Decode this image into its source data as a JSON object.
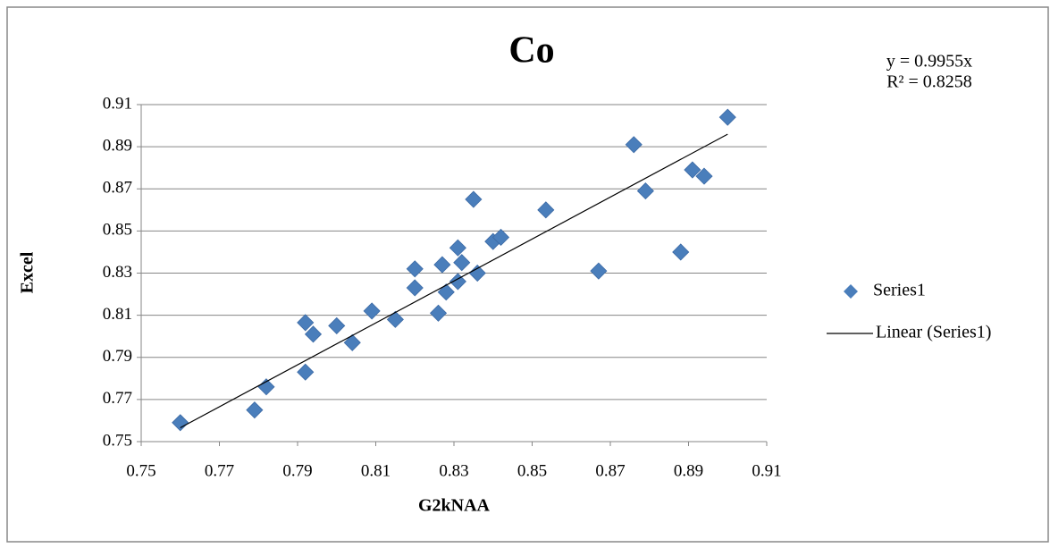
{
  "chart_data": {
    "type": "scatter",
    "title": "Co",
    "x_label": "G2kNAA",
    "y_label": "Excel",
    "xlim": [
      0.75,
      0.91
    ],
    "ylim": [
      0.75,
      0.91
    ],
    "xticks": [
      0.75,
      0.77,
      0.79,
      0.81,
      0.83,
      0.85,
      0.87,
      0.89,
      0.91
    ],
    "yticks": [
      0.75,
      0.77,
      0.79,
      0.81,
      0.83,
      0.85,
      0.87,
      0.89,
      0.91
    ],
    "grid": true,
    "legend": "right",
    "series": [
      {
        "name": "Series1",
        "color": "#4a7ebb",
        "x": [
          0.76,
          0.779,
          0.782,
          0.792,
          0.792,
          0.794,
          0.8,
          0.804,
          0.809,
          0.815,
          0.82,
          0.82,
          0.826,
          0.827,
          0.828,
          0.831,
          0.831,
          0.832,
          0.835,
          0.836,
          0.84,
          0.842,
          0.8535,
          0.867,
          0.876,
          0.879,
          0.888,
          0.891,
          0.894,
          0.9
        ],
        "values": [
          0.759,
          0.765,
          0.776,
          0.783,
          0.8065,
          0.801,
          0.805,
          0.797,
          0.812,
          0.808,
          0.832,
          0.823,
          0.811,
          0.834,
          0.821,
          0.842,
          0.826,
          0.835,
          0.865,
          0.83,
          0.845,
          0.847,
          0.86,
          0.831,
          0.891,
          0.869,
          0.84,
          0.879,
          0.876,
          0.904
        ]
      }
    ],
    "trendline": {
      "name": "Linear (Series1)",
      "slope": 0.9955,
      "equation": "y = 0.9955x",
      "r_squared": "R² = 0.8258",
      "color": "#000000"
    }
  }
}
